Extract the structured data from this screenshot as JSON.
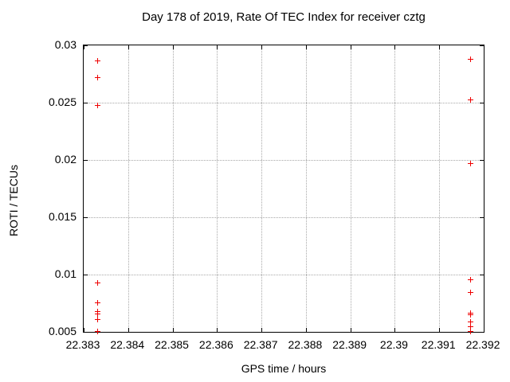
{
  "window": {
    "background": "#ffffff"
  },
  "chart_data": {
    "type": "scatter",
    "title": "Day 178 of 2019, Rate Of TEC Index for receiver cztg",
    "xlabel": "GPS time / hours",
    "ylabel": "ROTI / TECUs",
    "xlim": [
      22.383,
      22.392
    ],
    "ylim": [
      0.005,
      0.03
    ],
    "x_tick_labels": [
      "22.383",
      "22.384",
      "22.385",
      "22.386",
      "22.387",
      "22.388",
      "22.389",
      "22.39",
      "22.391",
      "22.392"
    ],
    "y_tick_labels": [
      "0.005",
      "0.01",
      "0.015",
      "0.02",
      "0.025",
      "0.03"
    ],
    "grid": true,
    "grid_style": "dotted",
    "grid_color": "#a8a8a8",
    "axis_color": "#000000",
    "legend_position": "none",
    "marker": "plus",
    "marker_size_px": 7,
    "series": [
      {
        "name": "ROTI",
        "color": "#ee0000",
        "points": [
          {
            "x": 22.3833,
            "y": 0.0287
          },
          {
            "x": 22.3833,
            "y": 0.0272
          },
          {
            "x": 22.3833,
            "y": 0.0248
          },
          {
            "x": 22.3833,
            "y": 0.0093
          },
          {
            "x": 22.3833,
            "y": 0.0076
          },
          {
            "x": 22.3833,
            "y": 0.0068
          },
          {
            "x": 22.3833,
            "y": 0.0066
          },
          {
            "x": 22.3833,
            "y": 0.0061
          },
          {
            "x": 22.3833,
            "y": 0.0051
          },
          {
            "x": 22.3917,
            "y": 0.0288
          },
          {
            "x": 22.3917,
            "y": 0.0253
          },
          {
            "x": 22.3917,
            "y": 0.0197
          },
          {
            "x": 22.3917,
            "y": 0.0096
          },
          {
            "x": 22.3917,
            "y": 0.0085
          },
          {
            "x": 22.3917,
            "y": 0.0067
          },
          {
            "x": 22.3917,
            "y": 0.0065
          },
          {
            "x": 22.3917,
            "y": 0.0059
          },
          {
            "x": 22.3917,
            "y": 0.0055
          },
          {
            "x": 22.3917,
            "y": 0.0051
          }
        ]
      }
    ]
  }
}
